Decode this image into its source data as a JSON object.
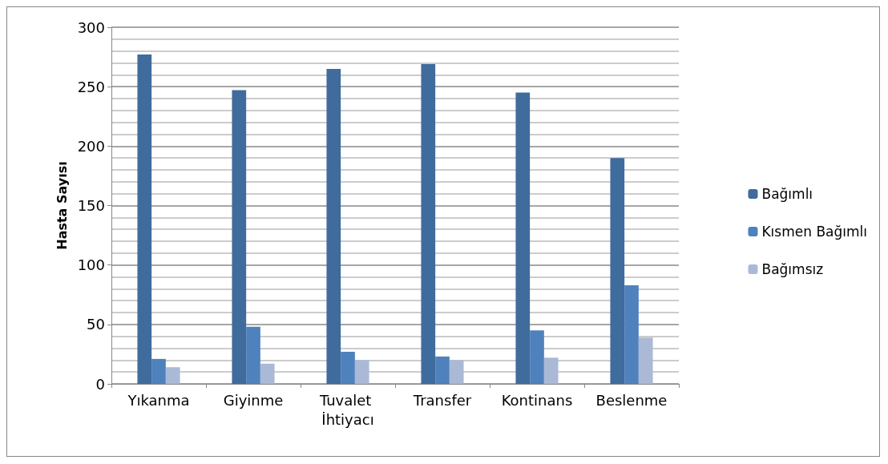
{
  "chart_data": {
    "type": "bar",
    "ylabel": "Hasta Sayısı",
    "categories": [
      "Yıkanma",
      "Giyinme",
      "Tuvalet İhtiyacı",
      "Transfer",
      "Kontinans",
      "Beslenme"
    ],
    "series": [
      {
        "name": "Bağımlı",
        "color": "#406b9d",
        "values": [
          277,
          247,
          265,
          269,
          245,
          190
        ]
      },
      {
        "name": "Kısmen Bağımlı",
        "color": "#4f81bd",
        "values": [
          21,
          48,
          27,
          23,
          45,
          83
        ]
      },
      {
        "name": "Bağımsız",
        "color": "#aab9d6",
        "values": [
          14,
          17,
          20,
          20,
          22,
          39
        ]
      }
    ],
    "ylim": [
      0,
      300
    ],
    "yticks": [
      0,
      50,
      100,
      150,
      200,
      250,
      300
    ],
    "grid": true,
    "legend": "right"
  }
}
